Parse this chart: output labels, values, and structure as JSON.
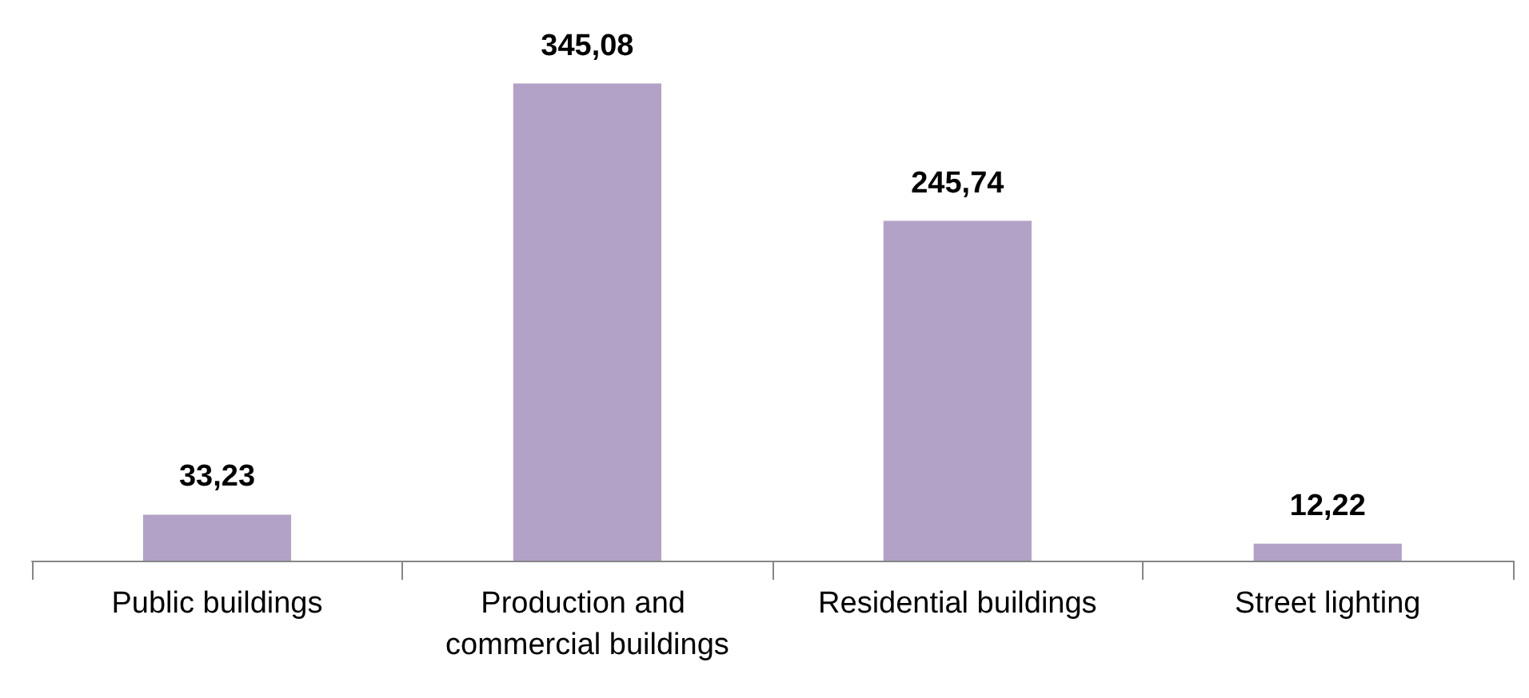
{
  "chart_data": {
    "type": "bar",
    "categories": [
      "Public buildings",
      "Production and commercial buildings",
      "Residential buildings",
      "Street lighting"
    ],
    "values": [
      33.23,
      345.08,
      245.74,
      12.22
    ],
    "value_labels": [
      "33,23",
      "345,08",
      "245,74",
      "12,22"
    ],
    "color": "#b3a2c7",
    "grid": false
  }
}
